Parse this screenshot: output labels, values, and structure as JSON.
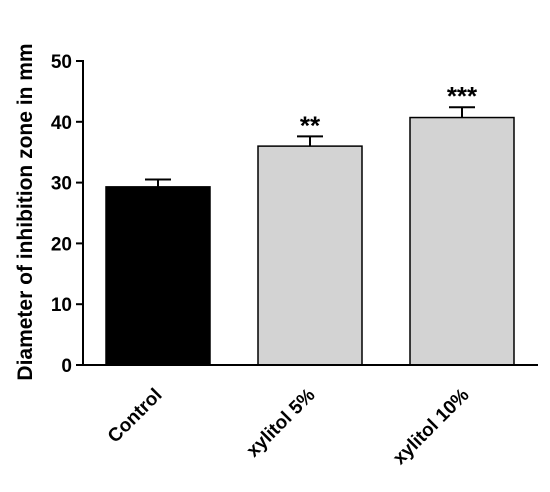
{
  "chart_data": {
    "type": "bar",
    "categories": [
      "Control",
      "xylitol 5%",
      "xylitol 10%"
    ],
    "values": [
      29.3,
      36.0,
      40.7
    ],
    "errors": [
      1.2,
      1.6,
      1.7
    ],
    "significance": [
      "",
      "**",
      "***"
    ],
    "colors": [
      "#000000",
      "#d3d3d3",
      "#d3d3d3"
    ],
    "ylabel": "Diameter of inhibition zone in mm",
    "xlabel": "",
    "ylim": [
      0,
      50
    ],
    "yticks": [
      0,
      10,
      20,
      30,
      40,
      50
    ],
    "grid": false,
    "legend": "none"
  }
}
